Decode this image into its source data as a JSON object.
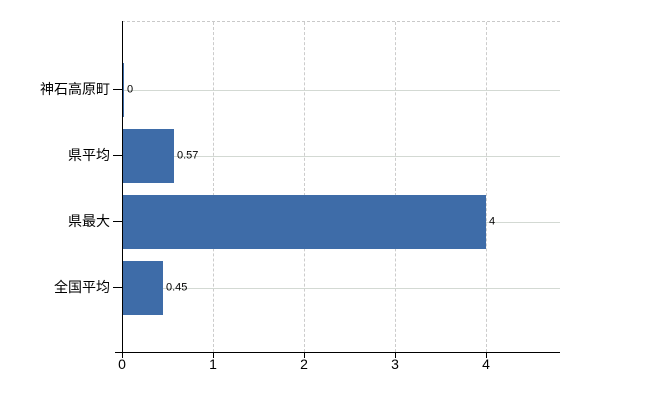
{
  "chart_data": {
    "type": "bar",
    "orientation": "horizontal",
    "title": "",
    "categories": [
      "神石高原町",
      "県平均",
      "県最大",
      "全国平均"
    ],
    "values": [
      0,
      0.57,
      4,
      0.45
    ],
    "value_labels": [
      "0",
      "0.57",
      "4",
      "0.45"
    ],
    "x_ticks": [
      "0",
      "1",
      "2",
      "3",
      "4"
    ],
    "x_tick_values": [
      0,
      1,
      2,
      3,
      4
    ],
    "xlim": [
      0,
      4.81
    ],
    "grid": true,
    "legend_position": "none",
    "colors": {
      "bar": "#3e6ca8",
      "h_gridline": "#d3d9d3",
      "v_gridline": "#cccccc",
      "plot_top_border": "#c9c9c9",
      "axis": "#000000",
      "text": "#000000"
    }
  }
}
